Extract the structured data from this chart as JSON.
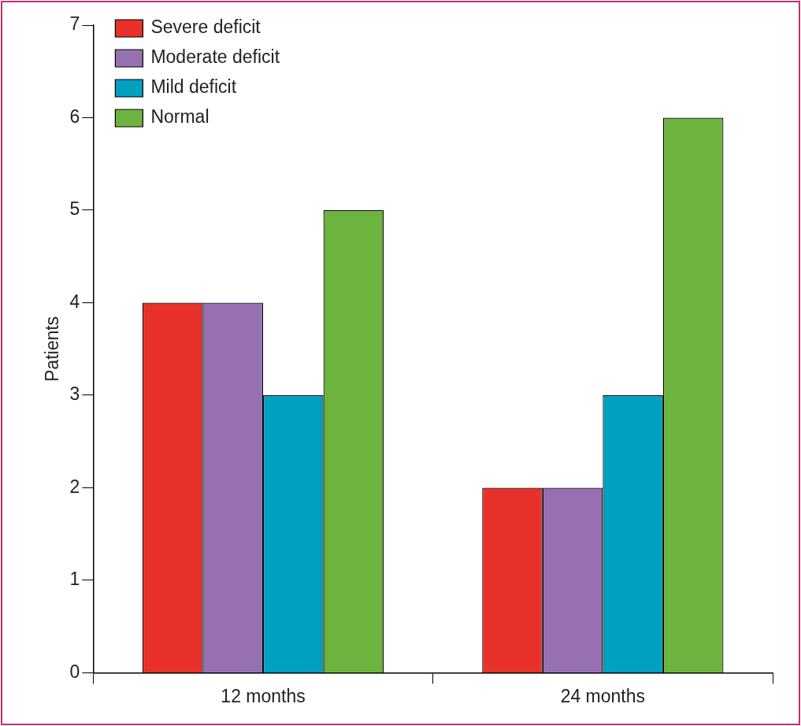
{
  "chart_data": {
    "type": "bar",
    "ylabel": "Patients",
    "categories": [
      "12 months",
      "24 months"
    ],
    "series": [
      {
        "name": "Severe deficit",
        "color": "#e8312a",
        "values": [
          4,
          2
        ]
      },
      {
        "name": "Moderate deficit",
        "color": "#9670b0",
        "values": [
          4,
          2
        ]
      },
      {
        "name": "Mild deficit",
        "color": "#00a0c0",
        "values": [
          3,
          3
        ]
      },
      {
        "name": "Normal",
        "color": "#6db33f",
        "values": [
          5,
          6
        ]
      }
    ],
    "ylim": [
      0,
      7
    ],
    "yticks": [
      0,
      1,
      2,
      3,
      4,
      5,
      6,
      7
    ],
    "grid": false,
    "legend": "top left"
  }
}
